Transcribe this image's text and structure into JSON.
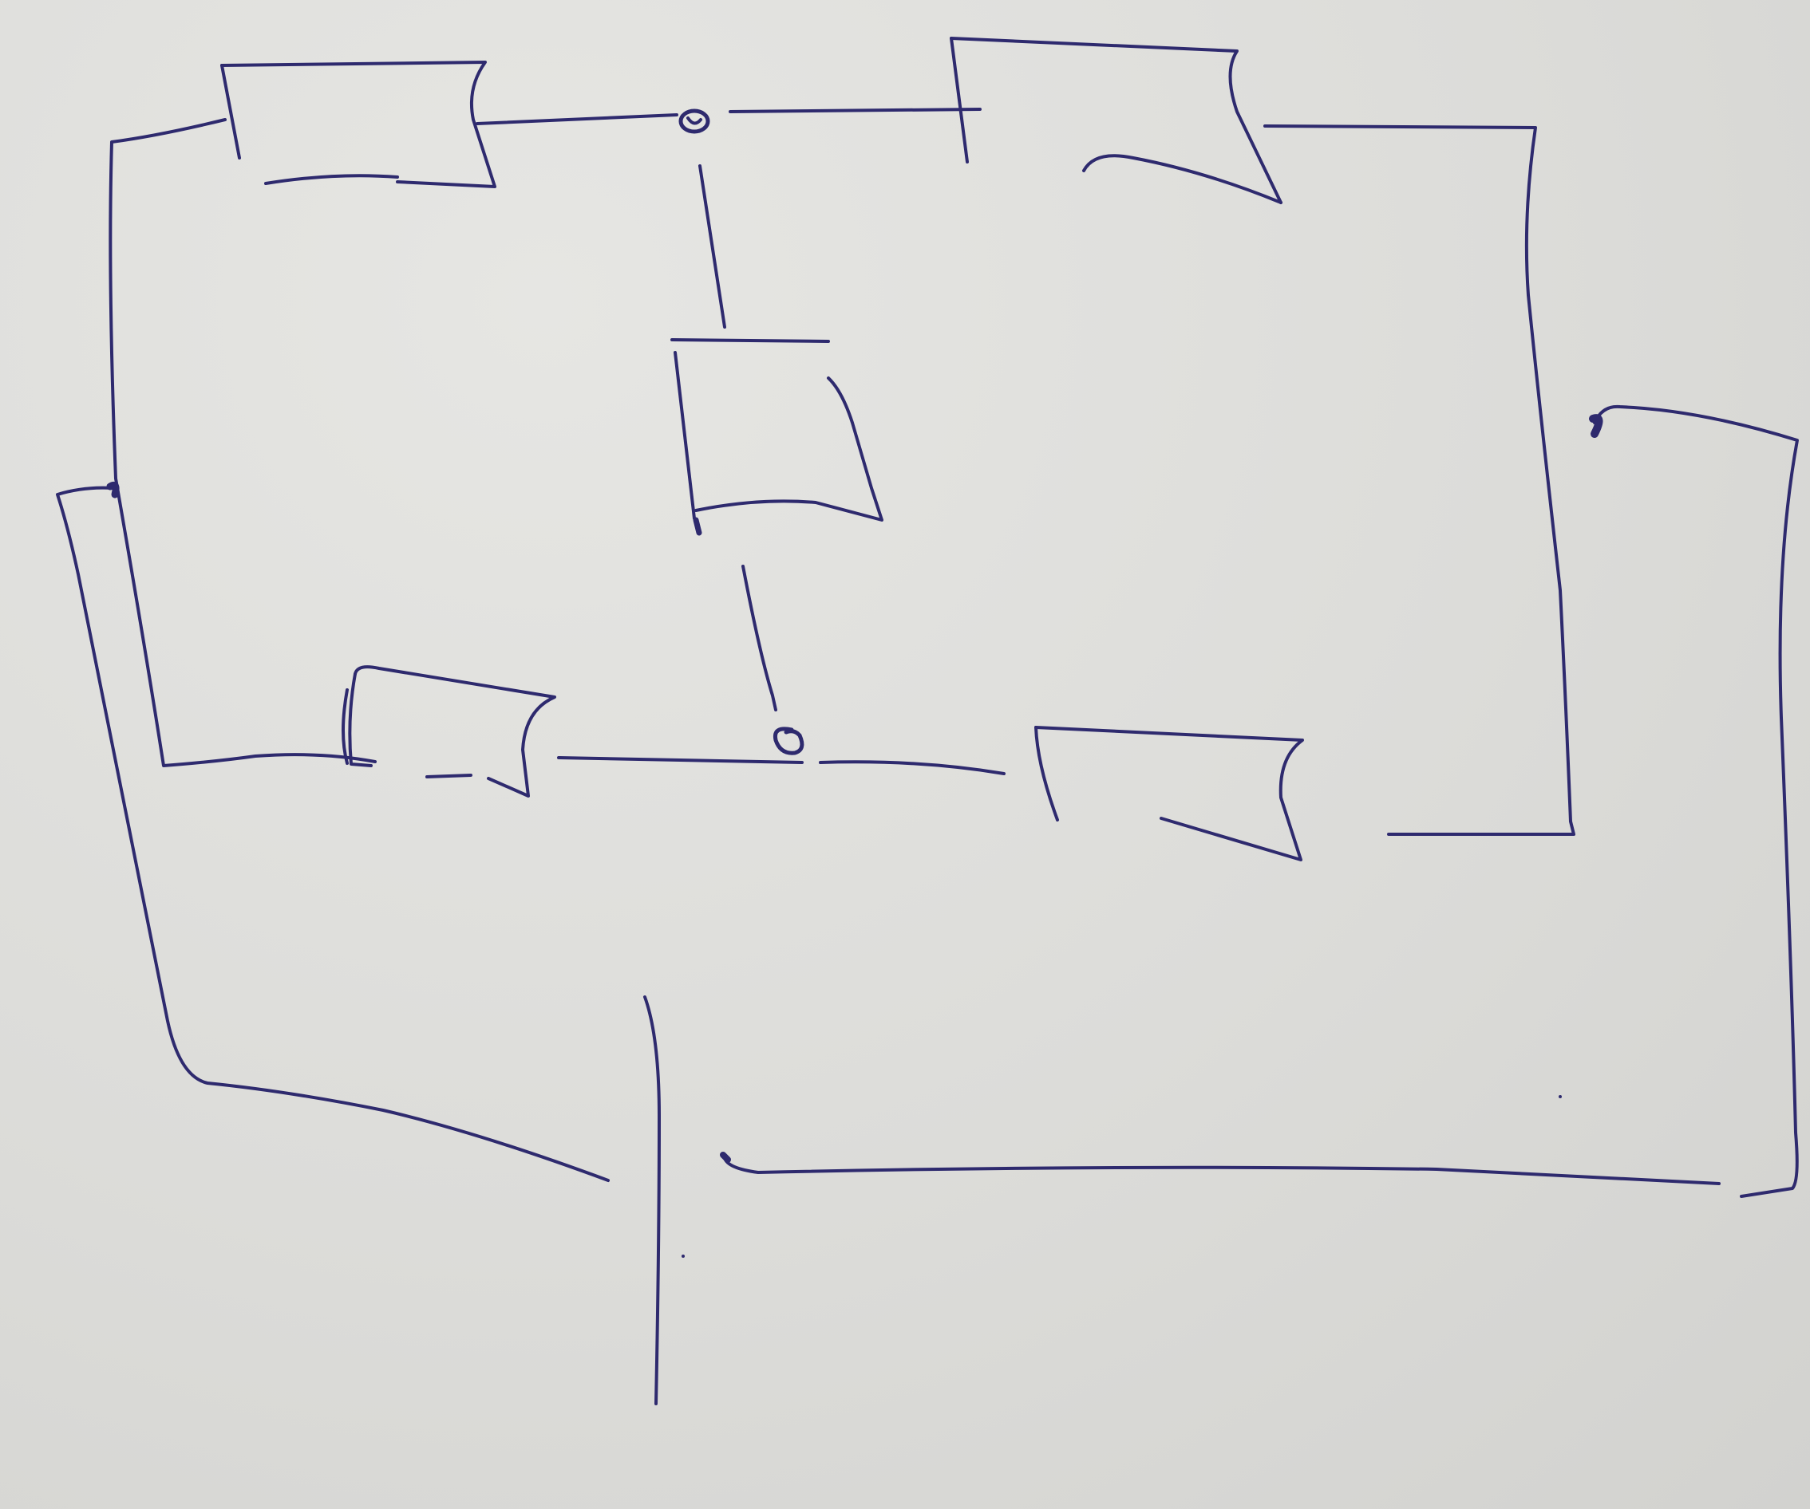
{
  "diagram": {
    "kind": "hand-drawn circuit schematic",
    "medium": "ink on paper",
    "colors": {
      "paper": "#dededc",
      "ink": "#2e2a6e"
    },
    "components": [
      {
        "id": "box-top-left",
        "shape": "rectangle"
      },
      {
        "id": "box-top-right",
        "shape": "rectangle"
      },
      {
        "id": "box-center",
        "shape": "rectangle"
      },
      {
        "id": "box-bottom-left",
        "shape": "rectangle"
      },
      {
        "id": "box-bottom-right",
        "shape": "rectangle"
      }
    ],
    "junctions": [
      {
        "id": "junction-top"
      },
      {
        "id": "junction-bottom"
      }
    ],
    "symbols": [
      {
        "id": "vertical-bar",
        "shape": "line"
      }
    ]
  }
}
